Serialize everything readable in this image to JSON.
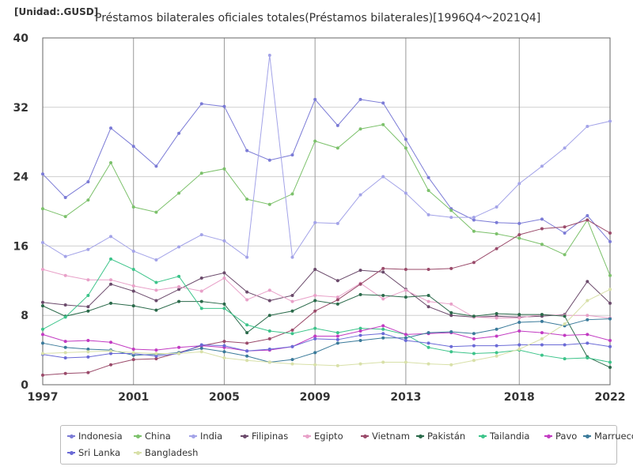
{
  "header": {
    "unit": "[Unidad:.GUSD]",
    "title": "Préstamos bilaterales oficiales totales(Préstamos bilaterales)[1996Q4～2021Q4]"
  },
  "chart_data": {
    "type": "line",
    "ylim": [
      0,
      40
    ],
    "xlim": [
      1997,
      2022
    ],
    "y_ticks": [
      0,
      8,
      16,
      24,
      32,
      40
    ],
    "x_ticks": [
      1997,
      2001,
      2005,
      2009,
      2013,
      2018,
      2022
    ],
    "grid": true,
    "legend_placement": "bottom",
    "x": [
      1997,
      1998,
      1999,
      2000,
      2001,
      2002,
      2003,
      2004,
      2005,
      2006,
      2007,
      2008,
      2009,
      2010,
      2011,
      2012,
      2013,
      2014,
      2015,
      2016,
      2017,
      2018,
      2019,
      2020,
      2021,
      2022
    ],
    "series": [
      {
        "name": "Indonesia",
        "color": "#7b7bd6",
        "values": [
          24.3,
          21.6,
          23.4,
          29.6,
          27.5,
          25.2,
          29.0,
          32.4,
          32.1,
          27.0,
          25.9,
          26.5,
          32.9,
          29.9,
          32.9,
          32.5,
          28.3,
          23.9,
          20.3,
          19.0,
          18.7,
          18.6,
          19.1,
          17.5,
          19.5,
          16.5
        ]
      },
      {
        "name": "China",
        "color": "#7cc16b",
        "values": [
          20.3,
          19.4,
          21.3,
          25.6,
          20.5,
          19.9,
          22.1,
          24.4,
          24.9,
          21.4,
          20.8,
          22.0,
          28.1,
          27.3,
          29.5,
          30.0,
          27.3,
          22.4,
          20.1,
          17.7,
          17.4,
          16.9,
          16.2,
          15.0,
          19.0,
          12.6
        ]
      },
      {
        "name": "India",
        "color": "#a3a3e8",
        "values": [
          16.4,
          14.8,
          15.6,
          17.1,
          15.4,
          14.4,
          15.9,
          17.3,
          16.6,
          14.7,
          38.0,
          14.7,
          18.7,
          18.6,
          21.9,
          24.0,
          22.1,
          19.6,
          19.3,
          19.3,
          20.5,
          23.2,
          25.2,
          27.3,
          29.8,
          30.4
        ]
      },
      {
        "name": "Filipinas",
        "color": "#6b4a6b",
        "values": [
          9.5,
          9.2,
          9.0,
          11.6,
          10.8,
          9.7,
          11.0,
          12.3,
          12.9,
          10.7,
          9.7,
          10.3,
          13.3,
          12.0,
          13.2,
          13.0,
          11.0,
          9.0,
          8.0,
          7.8,
          7.9,
          7.8,
          7.9,
          8.1,
          11.9,
          9.4
        ]
      },
      {
        "name": "Egipto",
        "color": "#e8a0c8",
        "values": [
          13.3,
          12.6,
          12.1,
          12.1,
          11.4,
          10.9,
          11.3,
          10.8,
          12.3,
          9.8,
          10.9,
          9.6,
          10.3,
          10.1,
          11.7,
          9.9,
          10.9,
          9.6,
          9.3,
          7.8,
          7.7,
          7.7,
          8.1,
          8.0,
          8.0,
          7.7
        ]
      },
      {
        "name": "Vietnam",
        "color": "#9a4a6a",
        "values": [
          1.1,
          1.3,
          1.4,
          2.3,
          2.9,
          3.0,
          3.7,
          4.5,
          5.0,
          4.8,
          5.3,
          6.3,
          8.5,
          9.8,
          11.6,
          13.4,
          13.3,
          13.3,
          13.4,
          14.1,
          15.7,
          17.3,
          18.0,
          18.2,
          19.0,
          17.5
        ]
      },
      {
        "name": "Pakistán",
        "color": "#2a6a4a",
        "values": [
          9.1,
          7.9,
          8.5,
          9.4,
          9.1,
          8.6,
          9.6,
          9.6,
          9.3,
          6.0,
          8.0,
          8.5,
          9.7,
          9.3,
          10.4,
          10.3,
          10.1,
          10.3,
          8.3,
          7.9,
          8.2,
          8.1,
          8.1,
          7.9,
          3.2,
          2.0
        ]
      },
      {
        "name": "Tailandia",
        "color": "#3cc48a",
        "values": [
          6.4,
          7.8,
          10.3,
          14.5,
          13.3,
          11.8,
          12.5,
          8.8,
          8.8,
          6.9,
          6.2,
          5.9,
          6.5,
          6.0,
          6.5,
          6.4,
          5.8,
          4.3,
          3.8,
          3.6,
          3.7,
          4.0,
          3.4,
          3.0,
          3.1,
          2.6
        ]
      },
      {
        "name": "Pavo",
        "color": "#c23ac2",
        "values": [
          5.8,
          5.0,
          5.1,
          4.9,
          4.1,
          4.0,
          4.3,
          4.5,
          4.3,
          3.9,
          4.0,
          4.4,
          5.6,
          5.6,
          6.2,
          6.8,
          5.8,
          5.9,
          6.0,
          5.3,
          5.6,
          6.2,
          6.0,
          5.7,
          5.8,
          5.1
        ]
      },
      {
        "name": "Marruecos",
        "color": "#3a7a9a",
        "values": [
          4.8,
          4.3,
          4.1,
          4.0,
          3.4,
          3.5,
          3.7,
          4.2,
          3.8,
          3.3,
          2.6,
          2.9,
          3.7,
          4.8,
          5.1,
          5.4,
          5.4,
          6.0,
          6.1,
          5.9,
          6.4,
          7.2,
          7.3,
          6.8,
          7.5,
          7.6
        ]
      },
      {
        "name": "Sri Lanka",
        "color": "#6a6ad6",
        "values": [
          3.5,
          3.1,
          3.2,
          3.6,
          3.6,
          3.3,
          3.6,
          4.6,
          4.5,
          3.9,
          4.1,
          4.4,
          5.3,
          5.2,
          5.7,
          5.9,
          5.1,
          4.8,
          4.4,
          4.5,
          4.5,
          4.6,
          4.6,
          4.6,
          4.8,
          4.4
        ]
      },
      {
        "name": "Bangladesh",
        "color": "#d8e0a8",
        "values": [
          3.6,
          3.7,
          3.8,
          3.9,
          3.7,
          3.6,
          3.6,
          3.8,
          3.1,
          2.8,
          2.6,
          2.4,
          2.3,
          2.2,
          2.4,
          2.6,
          2.6,
          2.4,
          2.3,
          2.8,
          3.3,
          4.1,
          5.3,
          7.0,
          9.7,
          11.0
        ]
      }
    ]
  }
}
